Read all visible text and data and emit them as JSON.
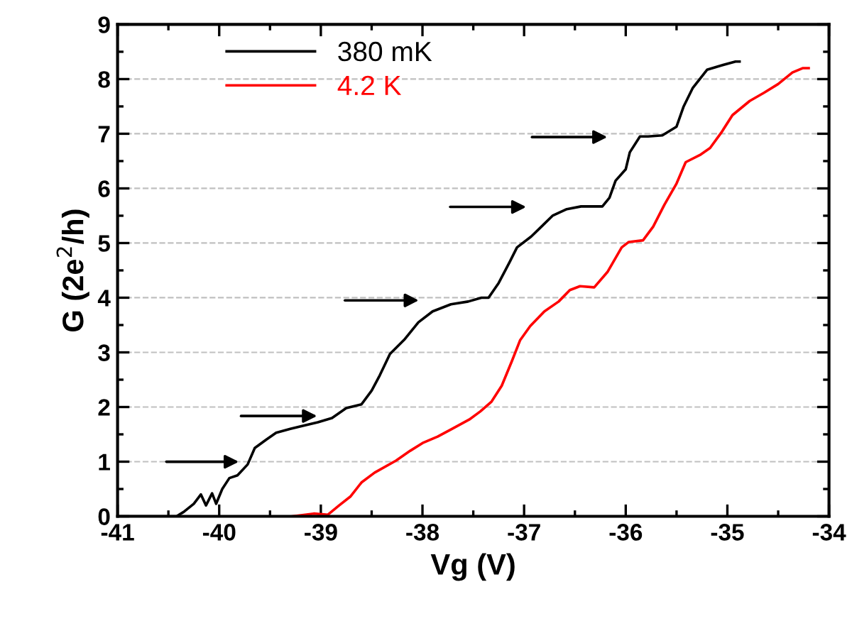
{
  "chart_data": {
    "type": "line",
    "xlabel": "Vg (V)",
    "ylabel": "G (2e$^{2}$/h)",
    "xlim": [
      -41,
      -34
    ],
    "xticks": [
      -41,
      -40,
      -39,
      -38,
      -37,
      -36,
      -35,
      -34
    ],
    "ylim": [
      0,
      9
    ],
    "yticks": [
      0,
      1,
      2,
      3,
      4,
      5,
      6,
      7,
      8,
      9
    ],
    "legend": "top left",
    "line_style": "solid",
    "marker": "none",
    "series": [
      {
        "name": "380 mK",
        "color": "#000000",
        "x": [
          -41,
          -40.42,
          -40.35,
          -40.25,
          -40.18,
          -40.13,
          -40.07,
          -40.03,
          -39.97,
          -39.9,
          -39.82,
          -39.72,
          -39.65,
          -39.54,
          -39.44,
          -39.3,
          -39.17,
          -39.03,
          -38.89,
          -38.75,
          -38.6,
          -38.5,
          -38.42,
          -38.32,
          -38.18,
          -38.04,
          -37.9,
          -37.72,
          -37.55,
          -37.42,
          -37.35,
          -37.25,
          -37.14,
          -37.07,
          -36.93,
          -36.83,
          -36.72,
          -36.58,
          -36.44,
          -36.23,
          -36.16,
          -36.1,
          -36.0,
          -35.96,
          -35.86,
          -35.78,
          -35.64,
          -35.5,
          -35.43,
          -35.34,
          -35.2,
          -35.06,
          -34.92,
          -34.88
        ],
        "values": [
          0,
          0,
          0.08,
          0.23,
          0.4,
          0.2,
          0.42,
          0.23,
          0.5,
          0.7,
          0.75,
          0.95,
          1.25,
          1.4,
          1.53,
          1.6,
          1.66,
          1.72,
          1.8,
          1.98,
          2.05,
          2.3,
          2.58,
          2.97,
          3.23,
          3.55,
          3.75,
          3.88,
          3.93,
          4.0,
          4.0,
          4.27,
          4.66,
          4.92,
          5.12,
          5.3,
          5.5,
          5.62,
          5.67,
          5.67,
          5.83,
          6.14,
          6.35,
          6.66,
          6.95,
          6.95,
          6.97,
          7.13,
          7.5,
          7.84,
          8.17,
          8.25,
          8.32,
          8.32
        ]
      },
      {
        "name": "4.2 K",
        "color": "#ff0000",
        "x": [
          -39.28,
          -39.07,
          -38.93,
          -38.82,
          -38.71,
          -38.6,
          -38.47,
          -38.26,
          -38.12,
          -37.99,
          -37.85,
          -37.71,
          -37.54,
          -37.43,
          -37.32,
          -37.22,
          -37.12,
          -37.04,
          -36.94,
          -36.8,
          -36.66,
          -36.55,
          -36.45,
          -36.31,
          -36.18,
          -36.04,
          -35.97,
          -35.83,
          -35.73,
          -35.62,
          -35.5,
          -35.41,
          -35.27,
          -35.17,
          -35.06,
          -34.95,
          -34.78,
          -34.64,
          -34.5,
          -34.36,
          -34.26,
          -34.2
        ],
        "values": [
          0,
          0.05,
          0.03,
          0.2,
          0.36,
          0.62,
          0.8,
          1.02,
          1.2,
          1.35,
          1.46,
          1.6,
          1.77,
          1.92,
          2.1,
          2.39,
          2.84,
          3.22,
          3.48,
          3.75,
          3.93,
          4.14,
          4.21,
          4.19,
          4.47,
          4.92,
          5.02,
          5.05,
          5.3,
          5.7,
          6.09,
          6.48,
          6.61,
          6.74,
          7.02,
          7.34,
          7.6,
          7.75,
          7.91,
          8.12,
          8.2,
          8.2
        ]
      }
    ],
    "grid": "y"
  }
}
